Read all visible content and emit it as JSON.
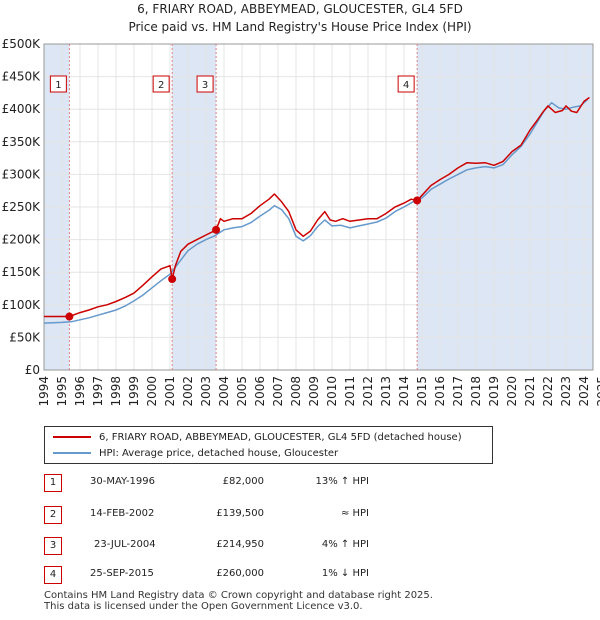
{
  "title_line1": "6, FRIARY ROAD, ABBEYMEAD, GLOUCESTER, GL4 5FD",
  "title_line2": "Price paid vs. HM Land Registry's House Price Index (HPI)",
  "colors": {
    "property": "#cc0000",
    "hpi": "#6699cc",
    "shade": "#dde6f4",
    "marker": "#cc0000"
  },
  "chart_data": {
    "type": "line",
    "title": "6, FRIARY ROAD, ABBEYMEAD, GLOUCESTER, GL4 5FD — Price paid vs. HM Land Registry's House Price Index (HPI)",
    "xlabel": "",
    "ylabel": "",
    "xlim": [
      1995,
      2025.5
    ],
    "ylim": [
      0,
      500000
    ],
    "x_ticks": [
      "1994",
      "1995",
      "1996",
      "1997",
      "1998",
      "1999",
      "2000",
      "2001",
      "2002",
      "2003",
      "2004",
      "2005",
      "2006",
      "2007",
      "2008",
      "2009",
      "2010",
      "2011",
      "2012",
      "2013",
      "2014",
      "2015",
      "2016",
      "2017",
      "2018",
      "2019",
      "2020",
      "2021",
      "2022",
      "2023",
      "2024",
      "2025"
    ],
    "y_ticks": [
      {
        "value": 0,
        "label": "£0"
      },
      {
        "value": 50000,
        "label": "£50K"
      },
      {
        "value": 100000,
        "label": "£100K"
      },
      {
        "value": 150000,
        "label": "£150K"
      },
      {
        "value": 200000,
        "label": "£200K"
      },
      {
        "value": 250000,
        "label": "£250K"
      },
      {
        "value": 300000,
        "label": "£300K"
      },
      {
        "value": 350000,
        "label": "£350K"
      },
      {
        "value": 400000,
        "label": "£400K"
      },
      {
        "value": 450000,
        "label": "£450K"
      },
      {
        "value": 500000,
        "label": "£500K"
      }
    ],
    "grid": true,
    "shaded_ranges": [
      [
        1995.0,
        1996.41
      ],
      [
        2002.12,
        2004.56
      ],
      [
        2015.73,
        2025.5
      ]
    ],
    "series": [
      {
        "name": "6, FRIARY ROAD, ABBEYMEAD, GLOUCESTER, GL4 5FD (detached house)",
        "color": "#cc0000",
        "x": [
          1995.0,
          1995.5,
          1996.0,
          1996.41,
          1997.0,
          1997.5,
          1998.0,
          1998.5,
          1999.0,
          1999.5,
          2000.0,
          2000.5,
          2001.0,
          2001.5,
          2002.0,
          2002.12,
          2002.3,
          2002.6,
          2003.0,
          2003.5,
          2004.0,
          2004.56,
          2004.8,
          2005.0,
          2005.5,
          2006.0,
          2006.5,
          2007.0,
          2007.5,
          2007.8,
          2008.2,
          2008.6,
          2009.0,
          2009.4,
          2009.8,
          2010.2,
          2010.6,
          2010.9,
          2011.2,
          2011.6,
          2012.0,
          2012.5,
          2013.0,
          2013.5,
          2014.0,
          2014.5,
          2015.0,
          2015.4,
          2015.73,
          2016.0,
          2016.5,
          2017.0,
          2017.5,
          2018.0,
          2018.5,
          2019.0,
          2019.5,
          2020.0,
          2020.5,
          2021.0,
          2021.5,
          2022.0,
          2022.4,
          2022.7,
          2023.0,
          2023.4,
          2023.8,
          2024.0,
          2024.3,
          2024.6,
          2025.0,
          2025.3
        ],
        "values": [
          82000,
          82000,
          82000,
          82000,
          88000,
          92000,
          97000,
          100000,
          105000,
          111000,
          118000,
          130000,
          143000,
          155000,
          160000,
          139500,
          160000,
          182000,
          193000,
          200000,
          207000,
          214950,
          232000,
          228000,
          232000,
          232000,
          240000,
          252000,
          262000,
          270000,
          258000,
          243000,
          215000,
          205000,
          213000,
          230000,
          243000,
          230000,
          228000,
          232000,
          228000,
          230000,
          232000,
          232000,
          240000,
          250000,
          256000,
          262000,
          260000,
          268000,
          283000,
          292000,
          300000,
          310000,
          318000,
          317000,
          318000,
          314000,
          320000,
          335000,
          345000,
          368000,
          383000,
          395000,
          405000,
          395000,
          398000,
          405000,
          397000,
          395000,
          412000,
          418000
        ]
      },
      {
        "name": "HPI: Average price, detached house, Gloucester",
        "color": "#6699cc",
        "x": [
          1995.0,
          1995.5,
          1996.0,
          1996.5,
          1997.0,
          1997.5,
          1998.0,
          1998.5,
          1999.0,
          1999.5,
          2000.0,
          2000.5,
          2001.0,
          2001.5,
          2002.0,
          2002.5,
          2003.0,
          2003.5,
          2004.0,
          2004.5,
          2005.0,
          2005.5,
          2006.0,
          2006.5,
          2007.0,
          2007.5,
          2007.8,
          2008.2,
          2008.6,
          2009.0,
          2009.4,
          2009.8,
          2010.2,
          2010.6,
          2011.0,
          2011.5,
          2012.0,
          2012.5,
          2013.0,
          2013.5,
          2014.0,
          2014.5,
          2015.0,
          2015.5,
          2016.0,
          2016.5,
          2017.0,
          2017.5,
          2018.0,
          2018.5,
          2019.0,
          2019.5,
          2020.0,
          2020.5,
          2021.0,
          2021.5,
          2022.0,
          2022.4,
          2022.8,
          2023.2,
          2023.6,
          2024.0,
          2024.4,
          2024.8,
          2025.2
        ],
        "values": [
          72000,
          72500,
          73000,
          74000,
          77000,
          80000,
          84000,
          88000,
          92000,
          98000,
          106000,
          115000,
          126000,
          137000,
          147000,
          165000,
          183000,
          193000,
          200000,
          206000,
          215000,
          218000,
          220000,
          226000,
          236000,
          245000,
          252000,
          246000,
          232000,
          205000,
          198000,
          206000,
          220000,
          230000,
          221000,
          222000,
          218000,
          221000,
          224000,
          227000,
          233000,
          243000,
          250000,
          258000,
          264000,
          277000,
          285000,
          293000,
          300000,
          307000,
          310000,
          312000,
          310000,
          315000,
          330000,
          343000,
          362000,
          380000,
          398000,
          410000,
          402000,
          400000,
          403000,
          405000,
          415000
        ]
      }
    ],
    "sales": [
      {
        "num": "1",
        "date": "30-MAY-1996",
        "price": "£82,000",
        "hpi": "13% ↑ HPI",
        "x": 1996.41,
        "y": 82000
      },
      {
        "num": "2",
        "date": "14-FEB-2002",
        "price": "£139,500",
        "hpi": "≈ HPI",
        "x": 2002.12,
        "y": 139500
      },
      {
        "num": "3",
        "date": "23-JUL-2004",
        "price": "£214,950",
        "hpi": "4% ↑ HPI",
        "x": 2004.56,
        "y": 214950
      },
      {
        "num": "4",
        "date": "25-SEP-2015",
        "price": "£260,000",
        "hpi": "1% ↓ HPI",
        "x": 2015.73,
        "y": 260000
      }
    ]
  },
  "legend": {
    "property_label": "6, FRIARY ROAD, ABBEYMEAD, GLOUCESTER, GL4 5FD (detached house)",
    "hpi_label": "HPI: Average price, detached house, Gloucester"
  },
  "footer": {
    "line1": "Contains HM Land Registry data © Crown copyright and database right 2025.",
    "line2": "This data is licensed under the Open Government Licence v3.0."
  }
}
